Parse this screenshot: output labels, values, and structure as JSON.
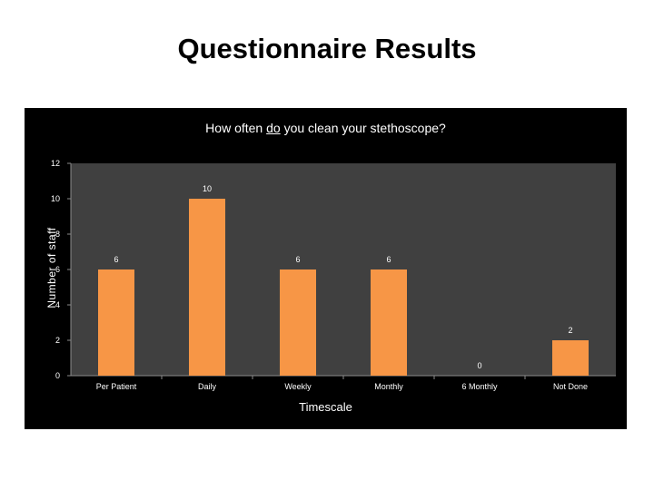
{
  "slide": {
    "title": "Questionnaire Results"
  },
  "chart_data": {
    "type": "bar",
    "title_parts": [
      "How often ",
      "do",
      " you clean your stethoscope?"
    ],
    "categories": [
      "Per Patient",
      "Daily",
      "Weekly",
      "Monthly",
      "6 Monthly",
      "Not Done"
    ],
    "values": [
      6,
      10,
      6,
      6,
      0,
      2
    ],
    "xlabel": "Timescale",
    "ylabel": "Number of staff",
    "ylim": [
      0,
      12
    ],
    "yticks": [
      0,
      2,
      4,
      6,
      8,
      10,
      12
    ],
    "grid": false,
    "legend": "none",
    "colors": {
      "bar": "#F79646",
      "plot_bg": "#404040",
      "panel_bg": "#000000",
      "text": "#ffffff"
    }
  }
}
